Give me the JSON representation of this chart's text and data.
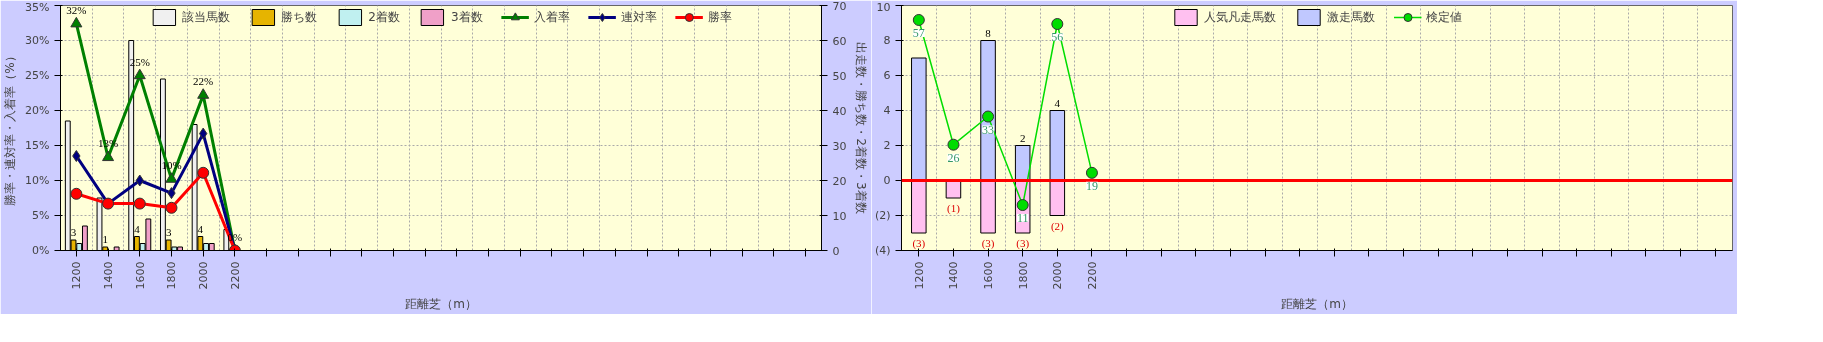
{
  "chart_data": [
    {
      "type": "bar",
      "categories": [
        "1200",
        "1400",
        "1600",
        "1800",
        "2000",
        "2200",
        null,
        null,
        null,
        null,
        null,
        null,
        null,
        null,
        null,
        null,
        null,
        null,
        null,
        null,
        null,
        null,
        null,
        null
      ],
      "xlabel": "距離芝（m）",
      "ylabel": "勝率・連対率・入着率（%）",
      "y2label": "出走数・勝ち数・2着数・3着数",
      "ylim": [
        0,
        35
      ],
      "yticks": [
        {
          "value": 0,
          "label": "0%"
        },
        {
          "value": 5,
          "label": "5%"
        },
        {
          "value": 10,
          "label": "10%"
        },
        {
          "value": 15,
          "label": "15%"
        },
        {
          "value": 20,
          "label": "20%"
        },
        {
          "value": 25,
          "label": "25%"
        },
        {
          "value": 30,
          "label": "30%"
        },
        {
          "value": 35,
          "label": "35%"
        }
      ],
      "y2lim": [
        0,
        70
      ],
      "y2ticks": [
        0,
        10,
        20,
        30,
        40,
        50,
        60,
        70
      ],
      "grid": true,
      "legend": "top",
      "series": [
        {
          "name": "該当馬数",
          "axis": "y2",
          "color": "#f0f0f0",
          "values": [
            37,
            15,
            60,
            49,
            36,
            6,
            null,
            null,
            null,
            null,
            null,
            null,
            null,
            null,
            null,
            null,
            null,
            null,
            null,
            null,
            null,
            null,
            null,
            null
          ]
        },
        {
          "name": "勝ち数",
          "axis": "y2",
          "color": "#e6b400",
          "values": [
            3,
            1,
            4,
            3,
            4,
            0,
            null,
            null,
            null,
            null,
            null,
            null,
            null,
            null,
            null,
            null,
            null,
            null,
            null,
            null,
            null,
            null,
            null,
            null
          ],
          "value_labels": [
            "3",
            "1",
            "4",
            "3",
            "4",
            null,
            null,
            null,
            null,
            null,
            null,
            null,
            null,
            null,
            null,
            null,
            null,
            null,
            null,
            null,
            null,
            null,
            null,
            null
          ]
        },
        {
          "name": "2着数",
          "axis": "y2",
          "color": "#c0f0f0",
          "values": [
            2,
            0,
            2,
            1,
            2,
            0,
            null,
            null,
            null,
            null,
            null,
            null,
            null,
            null,
            null,
            null,
            null,
            null,
            null,
            null,
            null,
            null,
            null,
            null
          ]
        },
        {
          "name": "3着数",
          "axis": "y2",
          "color": "#f0a0c8",
          "values": [
            7,
            1,
            9,
            1,
            2,
            0,
            null,
            null,
            null,
            null,
            null,
            null,
            null,
            null,
            null,
            null,
            null,
            null,
            null,
            null,
            null,
            null,
            null,
            null
          ]
        },
        {
          "name": "入着率",
          "type": "line",
          "marker": "triangle",
          "color": "#008000",
          "values": [
            32.4,
            13.3,
            25,
            10.2,
            22.2,
            0,
            null,
            null,
            null,
            null,
            null,
            null,
            null,
            null,
            null,
            null,
            null,
            null,
            null,
            null,
            null,
            null,
            null,
            null
          ],
          "value_labels": [
            "32%",
            "13%",
            "25%",
            "10%",
            "22%",
            "0%",
            null,
            null,
            null,
            null,
            null,
            null,
            null,
            null,
            null,
            null,
            null,
            null,
            null,
            null,
            null,
            null,
            null,
            null
          ]
        },
        {
          "name": "連対率",
          "type": "line",
          "marker": "diamond",
          "color": "#000080",
          "values": [
            13.5,
            6.7,
            10,
            8.2,
            16.7,
            0,
            null,
            null,
            null,
            null,
            null,
            null,
            null,
            null,
            null,
            null,
            null,
            null,
            null,
            null,
            null,
            null,
            null,
            null
          ]
        },
        {
          "name": "勝率",
          "type": "line",
          "marker": "circle",
          "color": "#ff0000",
          "values": [
            8.1,
            6.7,
            6.7,
            6.1,
            11.1,
            0,
            null,
            null,
            null,
            null,
            null,
            null,
            null,
            null,
            null,
            null,
            null,
            null,
            null,
            null,
            null,
            null,
            null,
            null
          ]
        }
      ]
    },
    {
      "type": "bar",
      "stacked": true,
      "categories": [
        "1200",
        "1400",
        "1600",
        "1800",
        "2000",
        "2200",
        null,
        null,
        null,
        null,
        null,
        null,
        null,
        null,
        null,
        null,
        null,
        null,
        null,
        null,
        null,
        null,
        null,
        null
      ],
      "xlabel": "距離芝（m）",
      "ylim": [
        -4,
        10
      ],
      "yticks": [
        {
          "value": -4,
          "label": "(4)"
        },
        {
          "value": -2,
          "label": "(2)"
        },
        0,
        2,
        4,
        6,
        8,
        10
      ],
      "y2lim": [
        -0.3,
        60.6
      ],
      "grid": true,
      "legend": "top",
      "ref_lines": [
        {
          "axis": "y",
          "value": 0,
          "color": "#ff0000"
        }
      ],
      "series": [
        {
          "name": "人気凡走馬数",
          "color": "#ffc0f0",
          "values": [
            -3,
            -1,
            -3,
            -3,
            -2,
            0,
            null,
            null,
            null,
            null,
            null,
            null,
            null,
            null,
            null,
            null,
            null,
            null,
            null,
            null,
            null,
            null,
            null,
            null
          ],
          "value_labels": [
            "(3)",
            "(1)",
            "(3)",
            "(3)",
            "(2)",
            null,
            null,
            null,
            null,
            null,
            null,
            null,
            null,
            null,
            null,
            null,
            null,
            null,
            null,
            null,
            null,
            null,
            null,
            null
          ]
        },
        {
          "name": "激走馬数",
          "color": "#c0c8ff",
          "values": [
            7,
            0,
            8,
            2,
            4,
            0,
            null,
            null,
            null,
            null,
            null,
            null,
            null,
            null,
            null,
            null,
            null,
            null,
            null,
            null,
            null,
            null,
            null,
            null
          ],
          "value_labels": [
            null,
            null,
            "8",
            "2",
            "4",
            null,
            null,
            null,
            null,
            null,
            null,
            null,
            null,
            null,
            null,
            null,
            null,
            null,
            null,
            null,
            null,
            null,
            null,
            null
          ]
        },
        {
          "name": "検定値",
          "type": "line",
          "axis": "y2",
          "marker": "circle",
          "color": "#00dd00",
          "values": [
            57,
            26,
            33,
            11,
            56,
            19,
            null,
            null,
            null,
            null,
            null,
            null,
            null,
            null,
            null,
            null,
            null,
            null,
            null,
            null,
            null,
            null,
            null,
            null
          ],
          "value_labels": [
            "57",
            "26",
            "33",
            "11",
            "56",
            "19",
            null,
            null,
            null,
            null,
            null,
            null,
            null,
            null,
            null,
            null,
            null,
            null,
            null,
            null,
            null,
            null,
            null,
            null
          ]
        }
      ]
    }
  ]
}
